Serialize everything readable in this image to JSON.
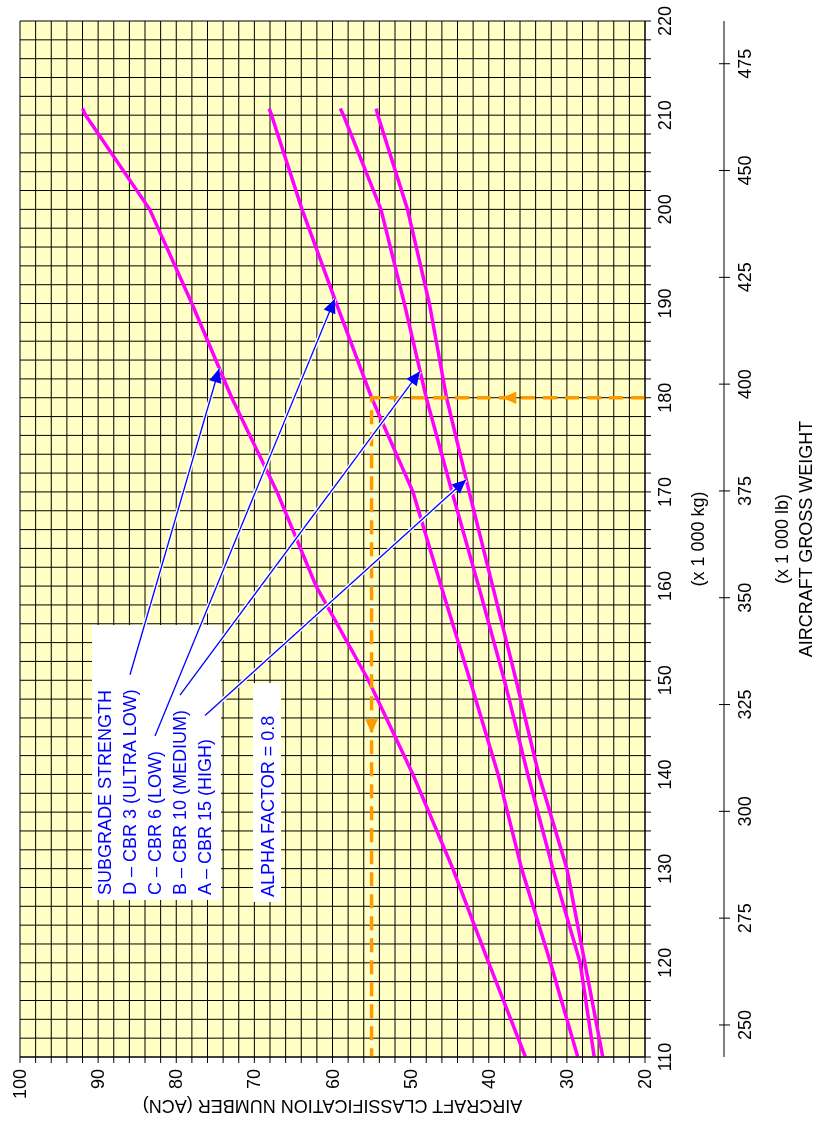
{
  "chart_data": {
    "type": "line",
    "xlabel": "AIRCRAFT CLASSIFICATION NUMBER (ACN)",
    "ylabel": "(x 1 000 kg)",
    "y2label": "(x 1 000 lb)",
    "xlim": [
      100,
      20
    ],
    "ylim": [
      110,
      220
    ],
    "y2lim": [
      242.5,
      485
    ],
    "xticks": [
      100,
      {
        "value": 98,
        "label": null
      },
      {
        "value": 96,
        "label": null
      },
      {
        "value": 94,
        "label": null
      },
      {
        "value": 92,
        "label": null
      },
      90,
      {
        "value": 88,
        "label": null
      },
      {
        "value": 86,
        "label": null
      },
      {
        "value": 84,
        "label": null
      },
      {
        "value": 82,
        "label": null
      },
      80,
      {
        "value": 78,
        "label": null
      },
      {
        "value": 76,
        "label": null
      },
      {
        "value": 74,
        "label": null
      },
      {
        "value": 72,
        "label": null
      },
      70,
      {
        "value": 68,
        "label": null
      },
      {
        "value": 66,
        "label": null
      },
      {
        "value": 64,
        "label": null
      },
      {
        "value": 62,
        "label": null
      },
      60,
      {
        "value": 58,
        "label": null
      },
      {
        "value": 56,
        "label": null
      },
      {
        "value": 54,
        "label": null
      },
      {
        "value": 52,
        "label": null
      },
      50,
      {
        "value": 48,
        "label": null
      },
      {
        "value": 46,
        "label": null
      },
      {
        "value": 44,
        "label": null
      },
      {
        "value": 42,
        "label": null
      },
      40,
      {
        "value": 38,
        "label": null
      },
      {
        "value": 36,
        "label": null
      },
      {
        "value": 34,
        "label": null
      },
      {
        "value": 32,
        "label": null
      },
      30,
      {
        "value": 28,
        "label": null
      },
      {
        "value": 26,
        "label": null
      },
      {
        "value": 24,
        "label": null
      },
      {
        "value": 22,
        "label": null
      },
      20
    ],
    "yticks": [
      110,
      {
        "value": 112,
        "label": null
      },
      {
        "value": 114,
        "label": null
      },
      {
        "value": 116,
        "label": null
      },
      {
        "value": 118,
        "label": null
      },
      120,
      {
        "value": 122,
        "label": null
      },
      {
        "value": 124,
        "label": null
      },
      {
        "value": 126,
        "label": null
      },
      {
        "value": 128,
        "label": null
      },
      130,
      {
        "value": 132,
        "label": null
      },
      {
        "value": 134,
        "label": null
      },
      {
        "value": 136,
        "label": null
      },
      {
        "value": 138,
        "label": null
      },
      140,
      {
        "value": 142,
        "label": null
      },
      {
        "value": 144,
        "label": null
      },
      {
        "value": 146,
        "label": null
      },
      {
        "value": 148,
        "label": null
      },
      150,
      {
        "value": 152,
        "label": null
      },
      {
        "value": 154,
        "label": null
      },
      {
        "value": 156,
        "label": null
      },
      {
        "value": 158,
        "label": null
      },
      160,
      {
        "value": 162,
        "label": null
      },
      {
        "value": 164,
        "label": null
      },
      {
        "value": 166,
        "label": null
      },
      {
        "value": 168,
        "label": null
      },
      170,
      {
        "value": 172,
        "label": null
      },
      {
        "value": 174,
        "label": null
      },
      {
        "value": 176,
        "label": null
      },
      {
        "value": 178,
        "label": null
      },
      180,
      {
        "value": 182,
        "label": null
      },
      {
        "value": 184,
        "label": null
      },
      {
        "value": 186,
        "label": null
      },
      {
        "value": 188,
        "label": null
      },
      190,
      {
        "value": 192,
        "label": null
      },
      {
        "value": 194,
        "label": null
      },
      {
        "value": 196,
        "label": null
      },
      {
        "value": 198,
        "label": null
      },
      200,
      {
        "value": 202,
        "label": null
      },
      {
        "value": 204,
        "label": null
      },
      {
        "value": 206,
        "label": null
      },
      {
        "value": 208,
        "label": null
      },
      210,
      {
        "value": 212,
        "label": null
      },
      {
        "value": 214,
        "label": null
      },
      {
        "value": 216,
        "label": null
      },
      {
        "value": 218,
        "label": null
      },
      220
    ],
    "y2ticks": [
      250,
      275,
      300,
      325,
      350,
      375,
      400,
      425,
      450,
      475
    ],
    "grid": true,
    "series": [
      {
        "color": "#ff00ff",
        "values": [
          110,
          120,
          130,
          140,
          150,
          160,
          170,
          180,
          190,
          200,
          210,
          210.7
        ],
        "x": [
          35.3,
          40.0,
          44.6,
          49.7,
          55.4,
          62.1,
          67.1,
          72.9,
          78.0,
          83.4,
          91.6,
          92.0
        ]
      },
      {
        "color": "#ff00ff",
        "values": [
          110,
          120,
          130,
          140,
          150,
          160,
          170,
          180,
          190,
          200,
          210,
          210.7
        ],
        "x": [
          28.6,
          32.1,
          35.8,
          38.8,
          42.4,
          46.1,
          49.7,
          55.0,
          59.5,
          63.9,
          67.8,
          68.1
        ]
      },
      {
        "color": "#ff00ff",
        "values": [
          110,
          120,
          130,
          140,
          150,
          160,
          170,
          180,
          190,
          200,
          210,
          210.7
        ],
        "x": [
          26.5,
          28.3,
          31.8,
          35.0,
          38.0,
          41.3,
          44.7,
          48.0,
          50.8,
          53.8,
          58.6,
          59.0
        ]
      },
      {
        "color": "#ff00ff",
        "values": [
          110,
          120,
          130,
          140,
          150,
          160,
          170,
          180,
          190,
          200,
          210,
          210.7
        ],
        "x": [
          25.4,
          27.7,
          30.0,
          33.6,
          36.5,
          39.5,
          42.5,
          45.4,
          47.6,
          50.4,
          54.2,
          54.4
        ]
      },
      {
        "color": "#ff9900",
        "line_style": "dashed",
        "x": [
          20,
          55,
          55
        ],
        "values": [
          180,
          180,
          110
        ]
      }
    ],
    "annotations": [
      "SUBGRADE STRENGTH",
      {
        "text": "D – CBR 3 (ULTRA LOW)",
        "x": 74.5,
        "y": 183.1
      },
      {
        "text": "C – CBR 6 (LOW)",
        "x": 59.7,
        "y": 190.5
      },
      {
        "text": "B – CBR 10 (MEDIUM)",
        "x": 48.8,
        "y": 182.8
      },
      {
        "text": "A – CBR 15 (HIGH)",
        "x": 42.9,
        "y": 171.3
      },
      "ALPHA FACTOR = 0.8",
      "AIRCRAFT GROSS WEIGHT"
    ]
  }
}
